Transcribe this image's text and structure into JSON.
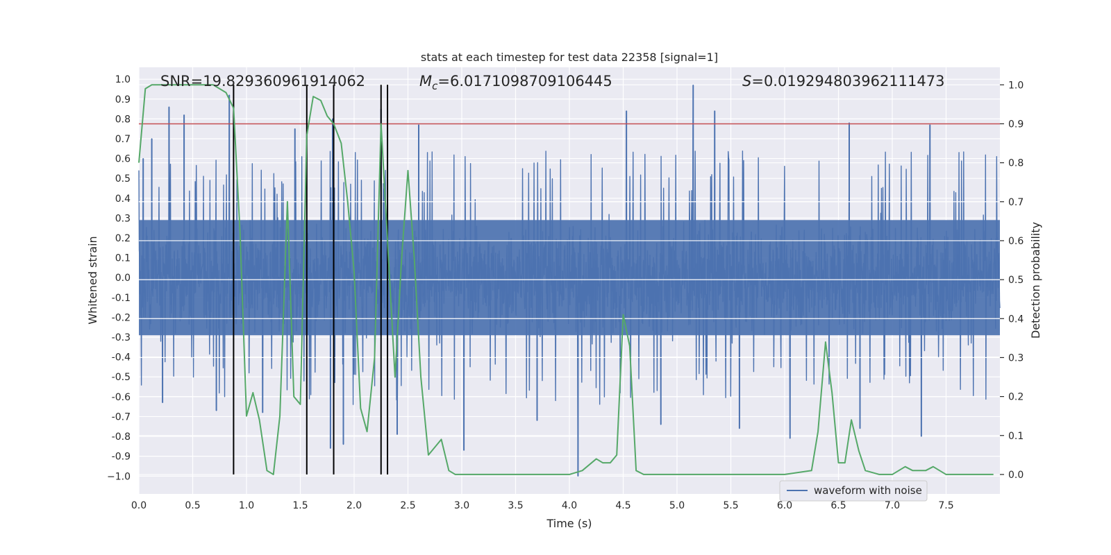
{
  "chart_data": {
    "type": "line",
    "title": "stats at each timestep for test data 22358 [signal=1]",
    "xlabel": "Time (s)",
    "ylabel_left": "Whitened strain",
    "ylabel_right": "Detection probability",
    "xlim": [
      0.0,
      8.0
    ],
    "ylim_left": [
      -1.09,
      1.06
    ],
    "ylim_right": [
      -0.05,
      1.045
    ],
    "x_ticks": [
      0.0,
      0.5,
      1.0,
      1.5,
      2.0,
      2.5,
      3.0,
      3.5,
      4.0,
      4.5,
      5.0,
      5.5,
      6.0,
      6.5,
      7.0,
      7.5
    ],
    "x_tick_labels": [
      "0.0",
      "0.5",
      "1.0",
      "1.5",
      "2.0",
      "2.5",
      "3.0",
      "3.5",
      "4.0",
      "4.5",
      "5.0",
      "5.5",
      "6.0",
      "6.5",
      "7.0",
      "7.5"
    ],
    "y_left_ticks": [
      1.0,
      0.9,
      0.8,
      0.7,
      0.6,
      0.5,
      0.4,
      0.3,
      0.2,
      0.1,
      0.0,
      -0.1,
      -0.2,
      -0.3,
      -0.4,
      -0.5,
      -0.6,
      -0.7,
      -0.8,
      -0.9,
      -1.0
    ],
    "y_left_tick_labels": [
      "1.0",
      "0.9",
      "0.8",
      "0.7",
      "0.6",
      "0.5",
      "0.4",
      "0.3",
      "0.2",
      "0.1",
      "0.0",
      "-0.1",
      "-0.2",
      "-0.3",
      "-0.4",
      "-0.5",
      "-0.6",
      "-0.7",
      "-0.8",
      "-0.9",
      "−1.0"
    ],
    "y_right_ticks": [
      1.0,
      0.9,
      0.8,
      0.7,
      0.6,
      0.5,
      0.4,
      0.3,
      0.2,
      0.1,
      0.0
    ],
    "y_right_tick_labels": [
      "1.0",
      "0.9",
      "0.8",
      "0.7",
      "0.6",
      "0.5",
      "0.4",
      "0.3",
      "0.2",
      "0.1",
      "0.0"
    ],
    "grid": true,
    "legend_placement": "lower-right",
    "legend": [
      {
        "label": "waveform with noise",
        "color": "#4c72b0"
      }
    ],
    "annotations": {
      "snr": "SNR=19.829360961914062",
      "mc_symbol": "M",
      "mc_sub": "c",
      "mc_value": "=6.0171098709106445",
      "s_symbol": "S",
      "s_value": "=0.019294803962111473"
    },
    "threshold": {
      "axis": "right",
      "value": 0.9,
      "color": "#c44e52"
    },
    "vertical_lines": {
      "x": [
        0.88,
        1.56,
        1.81,
        2.25,
        2.31
      ],
      "color": "#000000"
    },
    "series": [
      {
        "name": "waveform with noise",
        "axis": "left",
        "color": "#4c72b0",
        "kind": "noise",
        "x_range": [
          0.0,
          8.0
        ],
        "envelope": [
          -0.42,
          0.42
        ],
        "peaks": [
          {
            "x": 0.04,
            "y": 0.6
          },
          {
            "x": 0.12,
            "y": 0.7
          },
          {
            "x": 0.28,
            "y": 0.86
          },
          {
            "x": 0.42,
            "y": 0.82
          },
          {
            "x": 0.84,
            "y": 0.92
          },
          {
            "x": 1.45,
            "y": 0.75
          },
          {
            "x": 1.8,
            "y": 0.8
          },
          {
            "x": 2.25,
            "y": 0.85
          },
          {
            "x": 2.6,
            "y": 0.77
          },
          {
            "x": 4.53,
            "y": 0.84
          },
          {
            "x": 5.15,
            "y": 0.97
          },
          {
            "x": 5.35,
            "y": 0.84
          },
          {
            "x": 6.6,
            "y": 0.78
          },
          {
            "x": 7.35,
            "y": 0.77
          },
          {
            "x": 0.72,
            "y": -0.67
          },
          {
            "x": 1.78,
            "y": -0.86
          },
          {
            "x": 1.9,
            "y": -0.84
          },
          {
            "x": 2.4,
            "y": -0.79
          },
          {
            "x": 3.02,
            "y": -0.87
          },
          {
            "x": 4.08,
            "y": -1.0
          },
          {
            "x": 5.58,
            "y": -0.76
          },
          {
            "x": 6.05,
            "y": -0.81
          },
          {
            "x": 6.7,
            "y": -0.76
          },
          {
            "x": 7.27,
            "y": -0.8
          },
          {
            "x": 0.22,
            "y": -0.63
          },
          {
            "x": 1.15,
            "y": -0.68
          },
          {
            "x": 3.7,
            "y": -0.72
          },
          {
            "x": 4.85,
            "y": -0.74
          }
        ]
      },
      {
        "name": "",
        "axis": "right",
        "color": "#55a868",
        "kind": "line",
        "x": [
          0.0,
          0.06,
          0.12,
          0.19,
          0.25,
          0.31,
          0.38,
          0.44,
          0.5,
          0.56,
          0.62,
          0.69,
          0.75,
          0.81,
          0.88,
          0.94,
          1.0,
          1.06,
          1.12,
          1.19,
          1.25,
          1.31,
          1.38,
          1.44,
          1.5,
          1.56,
          1.62,
          1.69,
          1.75,
          1.81,
          1.88,
          1.94,
          2.0,
          2.06,
          2.12,
          2.19,
          2.25,
          2.31,
          2.38,
          2.44,
          2.5,
          2.56,
          2.62,
          2.69,
          2.75,
          2.81,
          2.88,
          2.94,
          3.0,
          3.06,
          3.25,
          3.38,
          3.5,
          3.62,
          3.75,
          4.0,
          4.12,
          4.25,
          4.31,
          4.38,
          4.44,
          4.5,
          4.56,
          4.62,
          4.69,
          4.75,
          5.0,
          5.25,
          5.5,
          5.75,
          6.0,
          6.25,
          6.31,
          6.38,
          6.44,
          6.5,
          6.56,
          6.62,
          6.69,
          6.75,
          6.88,
          7.0,
          7.06,
          7.12,
          7.19,
          7.25,
          7.31,
          7.38,
          7.44,
          7.5,
          7.75,
          7.94
        ],
        "y": [
          0.8,
          0.99,
          1.0,
          1.0,
          1.0,
          1.0,
          1.0,
          1.0,
          1.0,
          1.0,
          1.0,
          1.0,
          0.99,
          0.98,
          0.94,
          0.62,
          0.15,
          0.21,
          0.14,
          0.01,
          0.0,
          0.15,
          0.7,
          0.2,
          0.18,
          0.87,
          0.97,
          0.96,
          0.92,
          0.9,
          0.85,
          0.7,
          0.52,
          0.17,
          0.11,
          0.3,
          0.9,
          0.6,
          0.25,
          0.55,
          0.78,
          0.55,
          0.25,
          0.05,
          0.07,
          0.09,
          0.01,
          0.0,
          0.0,
          0.0,
          0.0,
          0.0,
          0.0,
          0.0,
          0.0,
          0.0,
          0.01,
          0.04,
          0.03,
          0.03,
          0.05,
          0.41,
          0.33,
          0.01,
          0.0,
          0.0,
          0.0,
          0.0,
          0.0,
          0.0,
          0.0,
          0.01,
          0.11,
          0.34,
          0.21,
          0.03,
          0.03,
          0.14,
          0.06,
          0.01,
          0.0,
          0.0,
          0.01,
          0.02,
          0.01,
          0.01,
          0.01,
          0.02,
          0.01,
          0.0,
          0.0,
          0.0
        ]
      }
    ]
  }
}
